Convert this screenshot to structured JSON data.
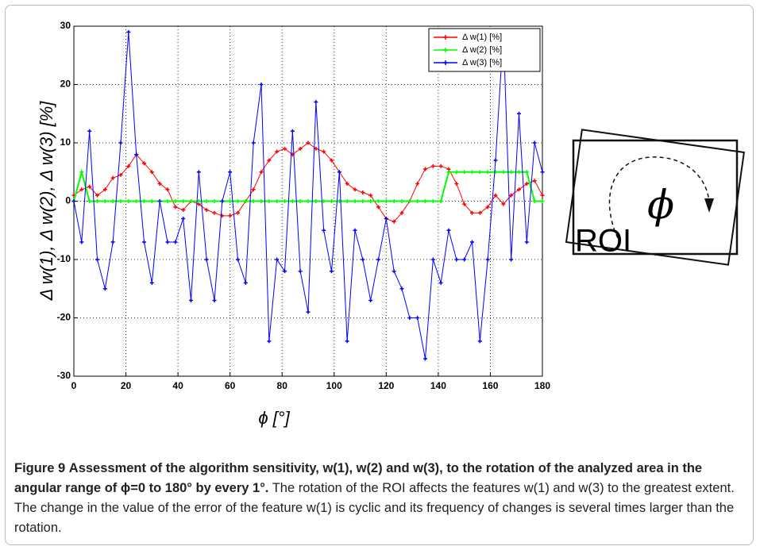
{
  "chart_data": {
    "type": "line",
    "xlabel": "ϕ [°]",
    "ylabel": "Δ w(1), Δ w(2), Δ w(3) [%]",
    "x": [
      0,
      3,
      6,
      9,
      12,
      15,
      18,
      21,
      24,
      27,
      30,
      33,
      36,
      39,
      42,
      45,
      48,
      51,
      54,
      57,
      60,
      63,
      66,
      69,
      72,
      75,
      78,
      81,
      84,
      87,
      90,
      93,
      96,
      99,
      102,
      105,
      108,
      111,
      114,
      117,
      120,
      123,
      126,
      129,
      132,
      135,
      138,
      141,
      144,
      147,
      150,
      153,
      156,
      159,
      162,
      165,
      168,
      171,
      174,
      177,
      180
    ],
    "series": [
      {
        "name": "Δ w(1) [%]",
        "color": "#ff0000",
        "values": [
          1,
          2,
          2.5,
          1,
          2,
          4,
          4.5,
          6,
          8,
          6.5,
          5,
          3,
          2,
          -1,
          -1.5,
          0,
          -0.5,
          -1.5,
          -2,
          -2.5,
          -2.5,
          -2,
          0,
          2,
          5,
          7,
          8.5,
          9,
          8,
          9,
          10,
          9,
          8.5,
          7,
          5,
          3,
          2,
          1.5,
          1,
          -1,
          -3,
          -3.5,
          -2,
          0,
          3,
          5.5,
          6,
          6,
          5.5,
          3,
          -0.5,
          -2,
          -2,
          -1,
          1,
          -0.5,
          1,
          2,
          3,
          3.5,
          1
        ]
      },
      {
        "name": "Δ w(2) [%]",
        "color": "#00ff00",
        "values": [
          0,
          5,
          0,
          0,
          0,
          0,
          0,
          0,
          0,
          0,
          0,
          0,
          0,
          0,
          0,
          0,
          0,
          0,
          0,
          0,
          0,
          0,
          0,
          0,
          0,
          0,
          0,
          0,
          0,
          0,
          0,
          0,
          0,
          0,
          0,
          0,
          0,
          0,
          0,
          0,
          0,
          0,
          0,
          0,
          0,
          0,
          0,
          0,
          5,
          5,
          5,
          5,
          5,
          5,
          5,
          5,
          5,
          5,
          5,
          0,
          0
        ]
      },
      {
        "name": "Δ w(3) [%]",
        "color": "#0000ff",
        "values": [
          0,
          -7,
          12,
          -10,
          -15,
          -7,
          10,
          29,
          8,
          -7,
          -14,
          0,
          -7,
          -7,
          -3,
          -17,
          5,
          -10,
          -17,
          0,
          5,
          -10,
          -14,
          10,
          20,
          -24,
          -10,
          -12,
          12,
          -12,
          -19,
          17,
          -5,
          -12,
          5,
          -24,
          -5,
          -10,
          -17,
          -10,
          -3,
          -12,
          -15,
          -20,
          -20,
          -27,
          -10,
          -14,
          -5,
          -10,
          -10,
          -7,
          -24,
          -10,
          7,
          29,
          -10,
          15,
          -7,
          10,
          5
        ]
      }
    ],
    "xlim": [
      0,
      180
    ],
    "xticks": [
      0,
      20,
      40,
      60,
      80,
      100,
      120,
      140,
      160,
      180
    ],
    "ylim": [
      -30,
      30
    ],
    "yticks": [
      -30,
      -20,
      -10,
      0,
      10,
      20,
      30
    ],
    "grid": true,
    "legend": "upper right"
  },
  "diagram": {
    "symbol": "ϕ",
    "label": "ROI"
  },
  "caption": {
    "label": "Figure 9",
    "title": "Assessment of the algorithm sensitivity, w(1), w(2) and w(3), to the rotation of the analyzed area in the angular range of ϕ=0 to 180° by every 1°.",
    "text": "The rotation of the ROI affects the features w(1) and w(3) to the greatest extent. The change in the value of the error of the feature w(1) is cyclic and its frequency of changes is several times larger than the rotation."
  }
}
